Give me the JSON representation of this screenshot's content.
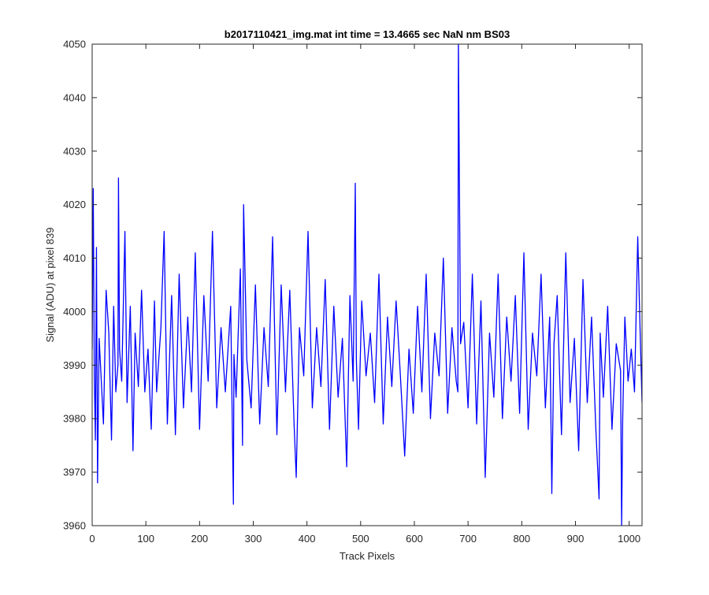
{
  "chart_data": {
    "type": "line",
    "title": "b2017110421_img.mat int time = 13.4665 sec  NaN nm BS03",
    "xlabel": "Track Pixels",
    "ylabel": "Signal (ADU) at pixel 839",
    "xlim": [
      0,
      1024
    ],
    "ylim": [
      3960,
      4050
    ],
    "xticks": [
      0,
      100,
      200,
      300,
      400,
      500,
      600,
      700,
      800,
      900,
      1000
    ],
    "yticks": [
      3960,
      3970,
      3980,
      3990,
      4000,
      4010,
      4020,
      4030,
      4040,
      4050
    ],
    "grid": false,
    "legend": "none",
    "line_color": "#0000ff",
    "series": [
      {
        "x": [
          0,
          2,
          4,
          6,
          8,
          10,
          13,
          17,
          21,
          26,
          31,
          36,
          40,
          44,
          48,
          49,
          51,
          55,
          61,
          65,
          71,
          76,
          80,
          86,
          92,
          98,
          104,
          110,
          116,
          120,
          128,
          134,
          140,
          148,
          155,
          162,
          170,
          178,
          185,
          192,
          200,
          208,
          216,
          224,
          232,
          240,
          248,
          258,
          263,
          264,
          268,
          276,
          280,
          282,
          288,
          296,
          304,
          312,
          320,
          328,
          336,
          344,
          352,
          360,
          368,
          376,
          380,
          386,
          394,
          402,
          410,
          418,
          426,
          434,
          442,
          450,
          458,
          466,
          474,
          480,
          486,
          490,
          492,
          496,
          502,
          510,
          518,
          526,
          534,
          542,
          550,
          558,
          566,
          574,
          582,
          590,
          598,
          606,
          614,
          622,
          630,
          638,
          646,
          654,
          662,
          670,
          678,
          681,
          682,
          686,
          692,
          700,
          708,
          716,
          724,
          732,
          740,
          748,
          756,
          764,
          772,
          780,
          788,
          796,
          804,
          812,
          820,
          828,
          836,
          844,
          852,
          856,
          860,
          866,
          874,
          882,
          890,
          898,
          906,
          914,
          922,
          930,
          938,
          944,
          946,
          952,
          960,
          968,
          976,
          984,
          986,
          988,
          992,
          998,
          1004,
          1010,
          1016,
          1020,
          1024
        ],
        "y": [
          3993,
          4023,
          3988,
          3976,
          4012,
          3968,
          3995,
          3987,
          3979,
          4004,
          3996,
          3976,
          4001,
          3985,
          3990,
          4025,
          3993,
          3987,
          4015,
          3983,
          4001,
          3974,
          3996,
          3986,
          4004,
          3985,
          3993,
          3978,
          4002,
          3985,
          3997,
          4015,
          3979,
          4003,
          3977,
          4007,
          3982,
          3999,
          3985,
          4011,
          3978,
          4003,
          3987,
          4015,
          3982,
          3997,
          3985,
          4001,
          3964,
          3992,
          3984,
          4008,
          3975,
          4020,
          3991,
          3982,
          4005,
          3979,
          3997,
          3986,
          4014,
          3977,
          4005,
          3985,
          4004,
          3979,
          3969,
          3997,
          3988,
          4015,
          3982,
          3997,
          3986,
          4006,
          3978,
          4001,
          3984,
          3995,
          3971,
          4003,
          3987,
          4024,
          3991,
          3978,
          4002,
          3988,
          3996,
          3983,
          4007,
          3979,
          3999,
          3986,
          4002,
          3988,
          3973,
          3993,
          3981,
          4001,
          3985,
          4007,
          3980,
          3996,
          3988,
          4010,
          3981,
          3997,
          3987,
          3985,
          4051,
          3994,
          3998,
          3982,
          4007,
          3979,
          4002,
          3969,
          3996,
          3984,
          4007,
          3980,
          3999,
          3987,
          4003,
          3981,
          4011,
          3978,
          3996,
          3988,
          4007,
          3982,
          3999,
          3966,
          3994,
          4003,
          3977,
          4011,
          3983,
          3995,
          3974,
          4006,
          3983,
          3999,
          3978,
          3965,
          3996,
          3984,
          4001,
          3978,
          3994,
          3989,
          3960,
          3980,
          3999,
          3987,
          3993,
          3985,
          4014,
          3998,
          3983
        ]
      }
    ]
  }
}
